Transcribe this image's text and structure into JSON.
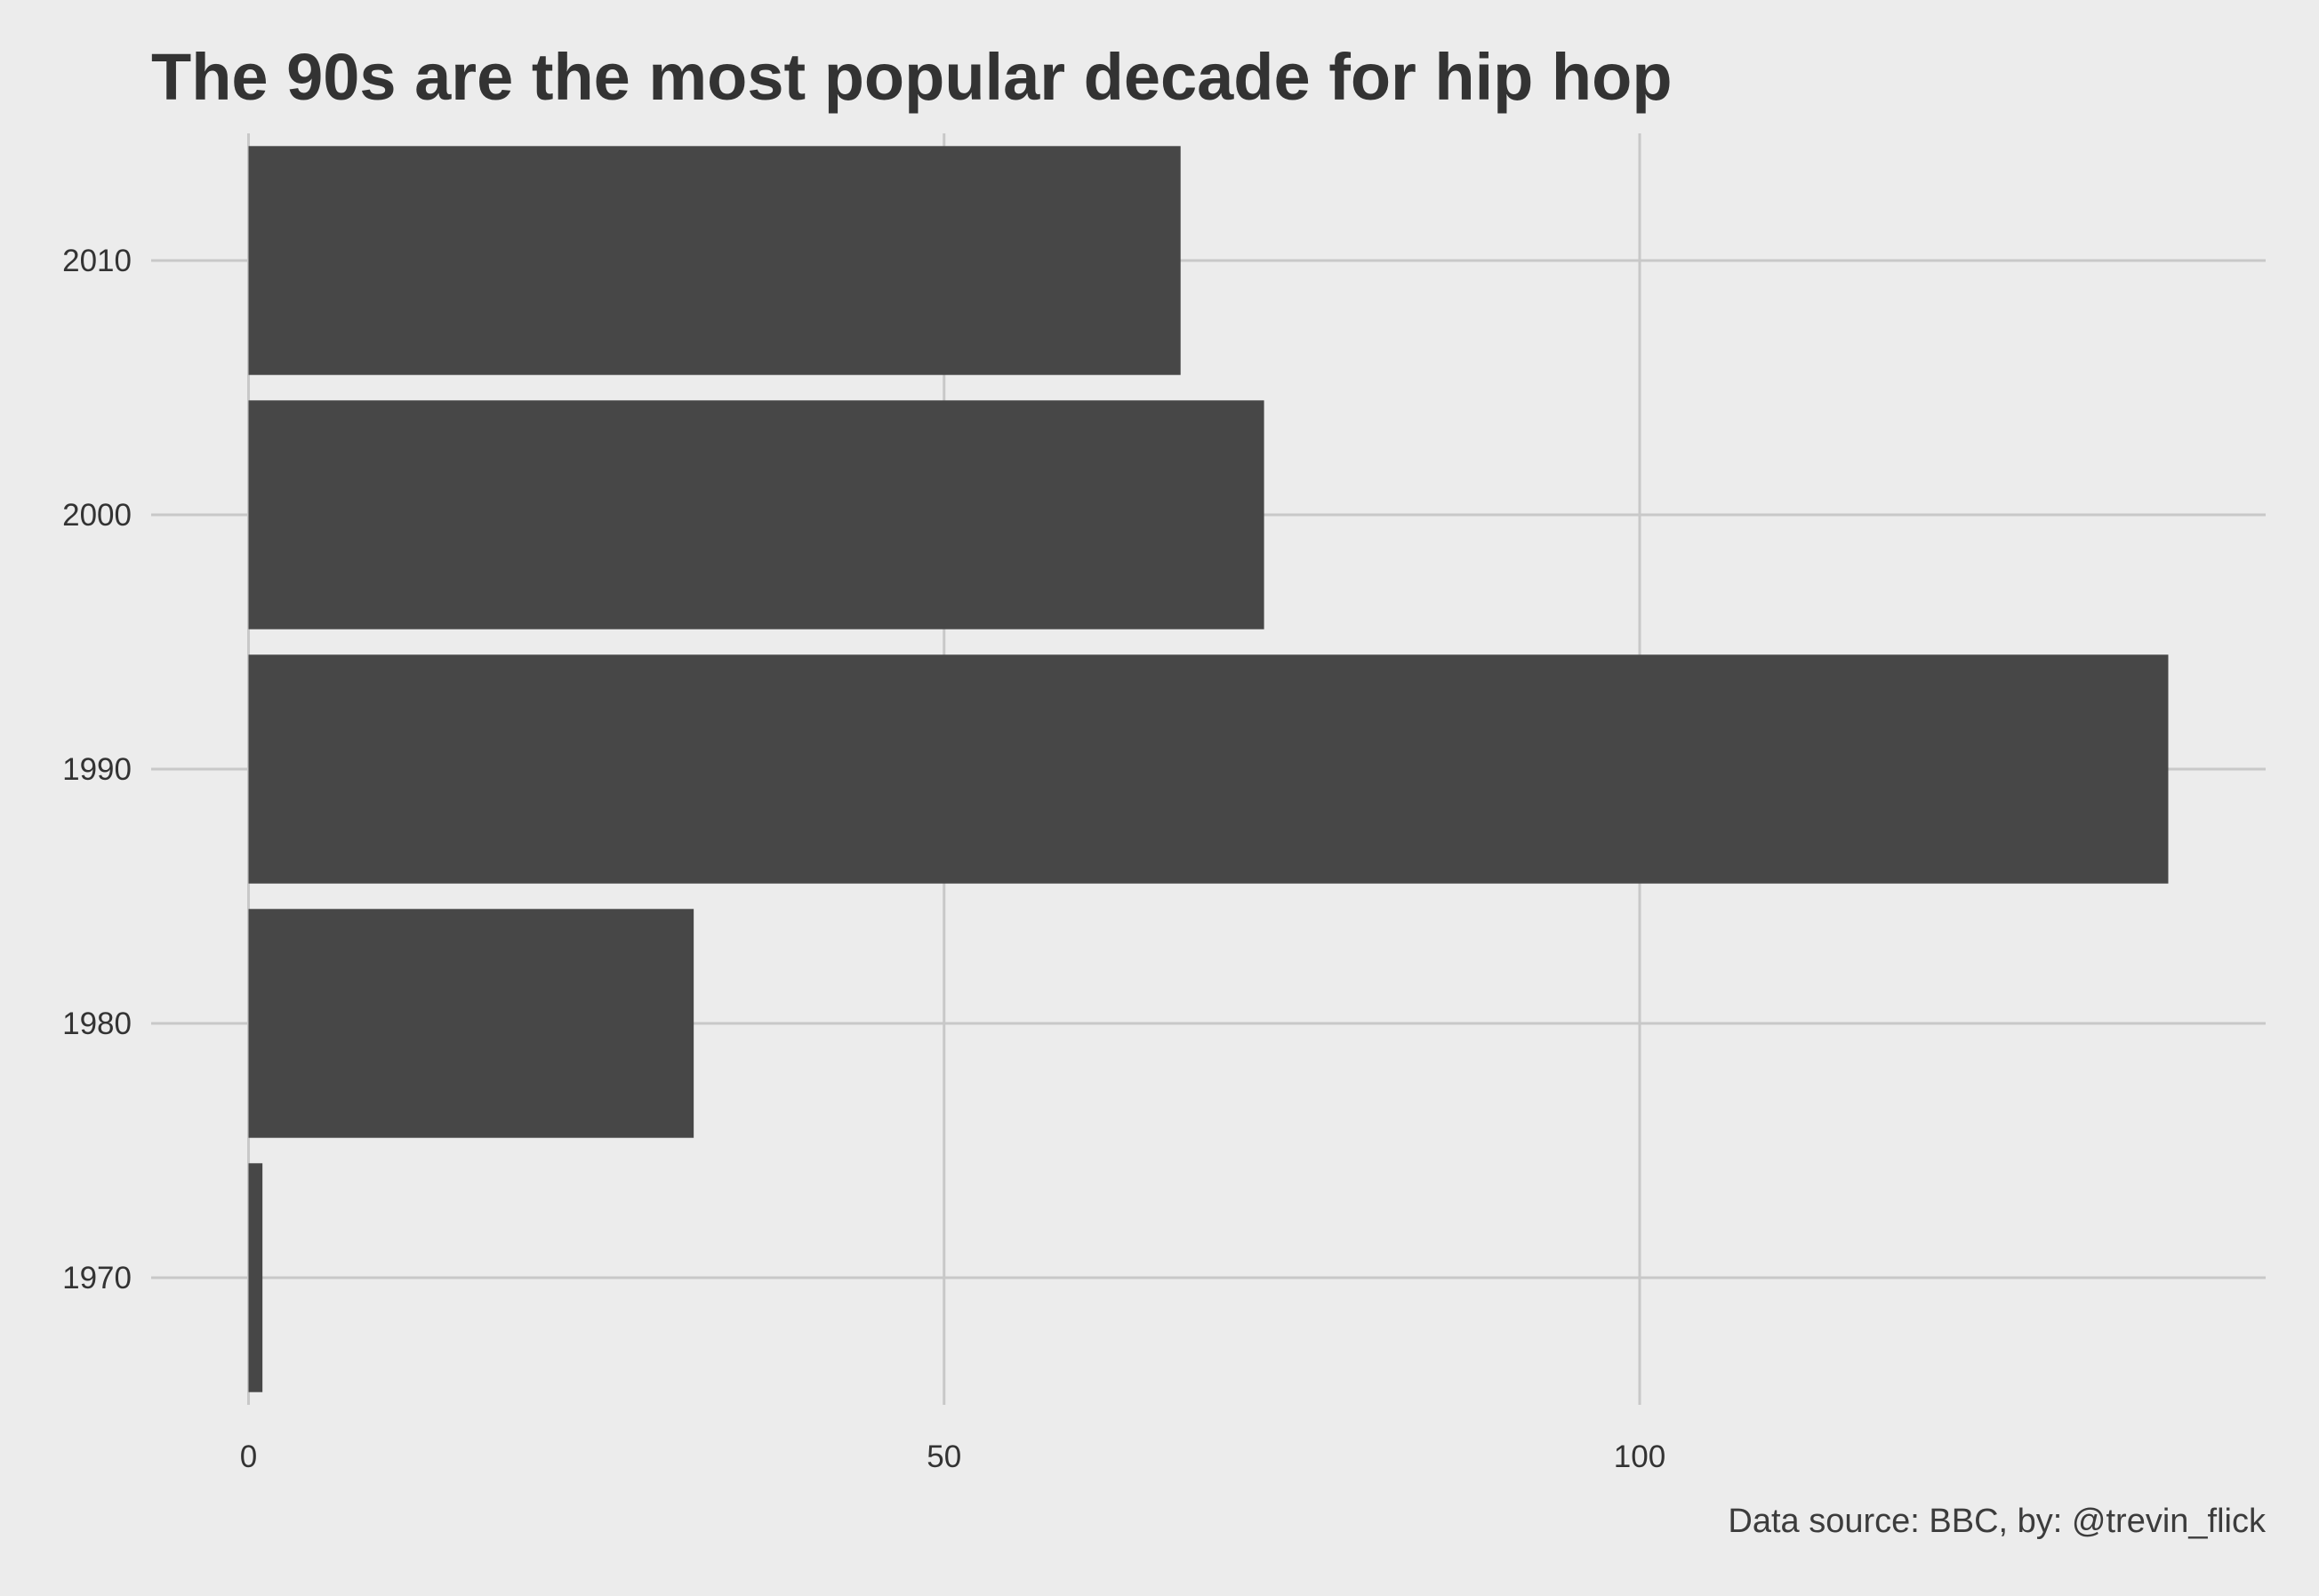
{
  "chart_data": {
    "type": "bar",
    "orientation": "horizontal",
    "title": "The 90s are the most popular decade for hip hop",
    "caption": "Data source: BBC, by: @trevin_flick",
    "xlabel": "",
    "ylabel": "",
    "categories": [
      "1970",
      "1980",
      "1990",
      "2000",
      "2010"
    ],
    "values": [
      1,
      32,
      138,
      73,
      67
    ],
    "xlim": [
      -7,
      145
    ],
    "x_ticks": [
      0,
      50,
      100
    ],
    "x_tick_labels": [
      "0",
      "50",
      "100"
    ],
    "grid": true,
    "legend": "none",
    "colors": {
      "bar": "#474747",
      "grid": "#c8c8c8",
      "background": "#ececec",
      "text": "#333333"
    }
  }
}
